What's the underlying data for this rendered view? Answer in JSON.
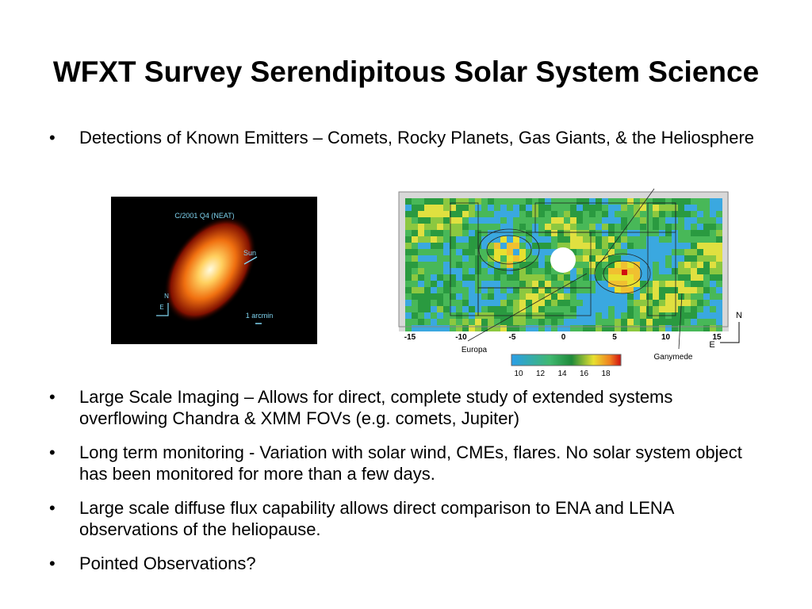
{
  "title": "WFXT Survey Serendipitous Solar System Science",
  "bullets_top": [
    "Detections of Known Emitters – Comets, Rocky Planets, Gas Giants, & the Heliosphere"
  ],
  "comet_image": {
    "label": "C/2001 Q4 (NEAT)",
    "sun": "Sun",
    "north": "N",
    "east": "E",
    "scale": "1 arcmin"
  },
  "map_image": {
    "xticks": [
      "-15",
      "-10",
      "-5",
      "0",
      "5",
      "10",
      "15"
    ],
    "europa": "Europa",
    "ganymede": "Ganymede",
    "colorbar_ticks": [
      "10",
      "12",
      "14",
      "16",
      "18"
    ],
    "north": "N",
    "east": "E"
  },
  "bullets_bottom": [
    "Large Scale Imaging – Allows for direct, complete study of extended systems overflowing Chandra & XMM FOVs (e.g. comets, Jupiter)",
    "Long term monitoring  - Variation with solar wind, CMEs, flares. No solar system object has been monitored for more than a few days.",
    "Large scale diffuse flux capability allows direct comparison to ENA and LENA observations of the heliopause.",
    "Pointed Observations?"
  ]
}
